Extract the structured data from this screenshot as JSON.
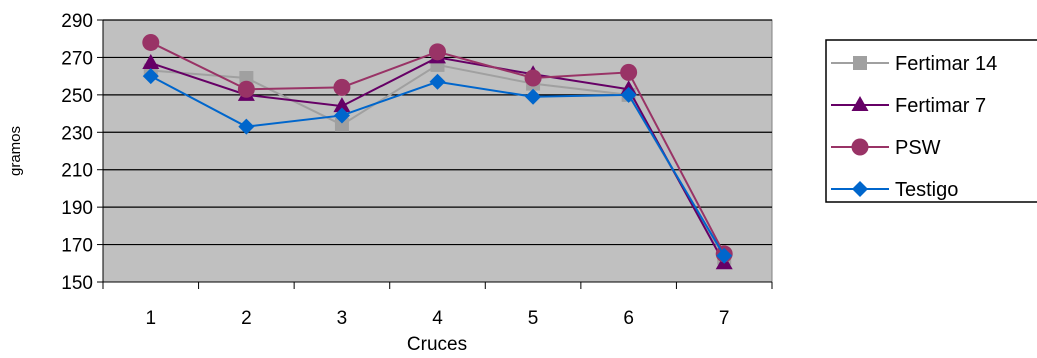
{
  "chart_data": {
    "type": "line",
    "title": "",
    "xlabel": "Cruces",
    "ylabel": "gramos",
    "categories": [
      "1",
      "2",
      "3",
      "4",
      "5",
      "6",
      "7"
    ],
    "ylim": [
      150,
      290
    ],
    "yticks": [
      150,
      170,
      190,
      210,
      230,
      250,
      270,
      290
    ],
    "grid": "horizontal",
    "plot_background": "#c0c0c0",
    "legend_position": "right",
    "series": [
      {
        "name": "Fertimar 14",
        "marker": "square",
        "color": "#a0a0a0",
        "values": [
          263,
          259,
          234,
          266,
          256,
          250,
          163
        ]
      },
      {
        "name": "Fertimar 7",
        "marker": "triangle",
        "color": "#660066",
        "values": [
          267,
          250,
          244,
          270,
          261,
          253,
          160
        ]
      },
      {
        "name": "PSW",
        "marker": "circle",
        "color": "#993366",
        "values": [
          278,
          253,
          254,
          273,
          259,
          262,
          165
        ]
      },
      {
        "name": "Testigo",
        "marker": "diamond",
        "color": "#0066cc",
        "values": [
          260,
          233,
          239,
          257,
          249,
          250,
          164
        ]
      }
    ]
  }
}
